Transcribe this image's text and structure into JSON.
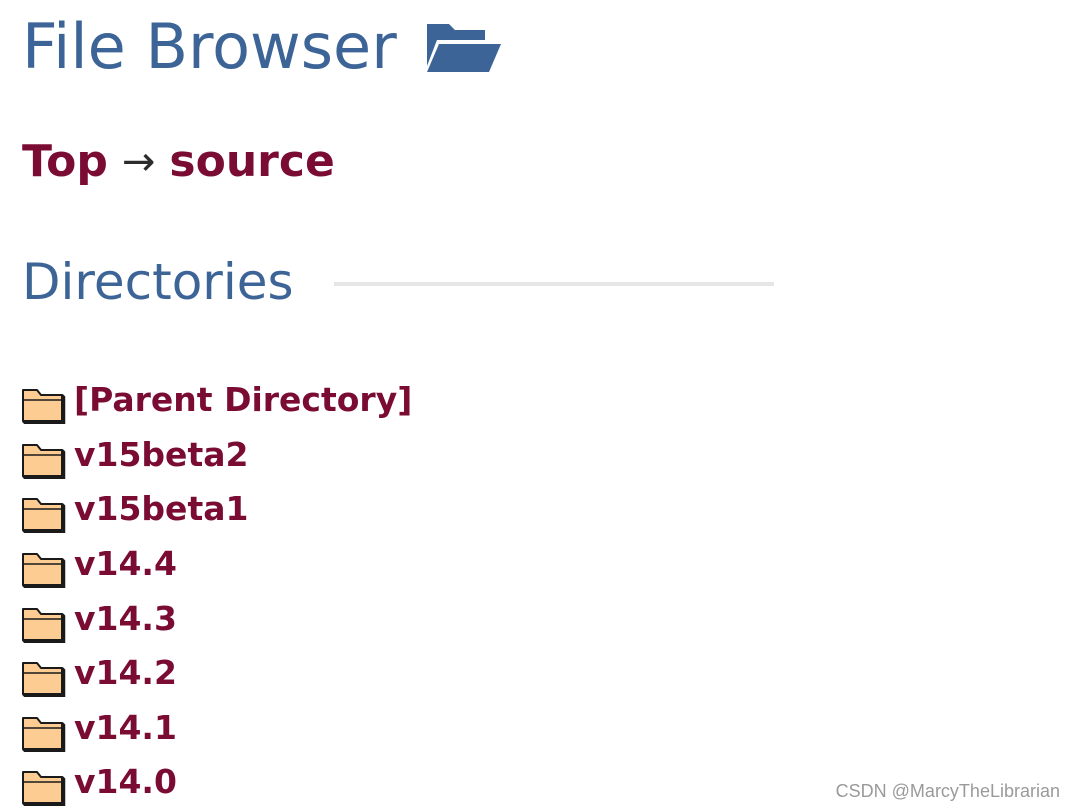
{
  "header": {
    "title": "File Browser",
    "icon": "folder-open-icon",
    "accent_color": "#3d6497"
  },
  "breadcrumb": {
    "items": [
      {
        "label": "Top"
      },
      {
        "label": "source"
      }
    ],
    "separator": "→",
    "link_color": "#7a0c33"
  },
  "directories": {
    "heading": "Directories",
    "items": [
      {
        "label": "[Parent Directory]",
        "icon": "folder-icon"
      },
      {
        "label": "v15beta2",
        "icon": "folder-icon"
      },
      {
        "label": "v15beta1",
        "icon": "folder-icon"
      },
      {
        "label": "v14.4",
        "icon": "folder-icon"
      },
      {
        "label": "v14.3",
        "icon": "folder-icon"
      },
      {
        "label": "v14.2",
        "icon": "folder-icon"
      },
      {
        "label": "v14.1",
        "icon": "folder-icon"
      },
      {
        "label": "v14.0",
        "icon": "folder-icon"
      }
    ]
  },
  "watermark": "CSDN @MarcyTheLibrarian"
}
